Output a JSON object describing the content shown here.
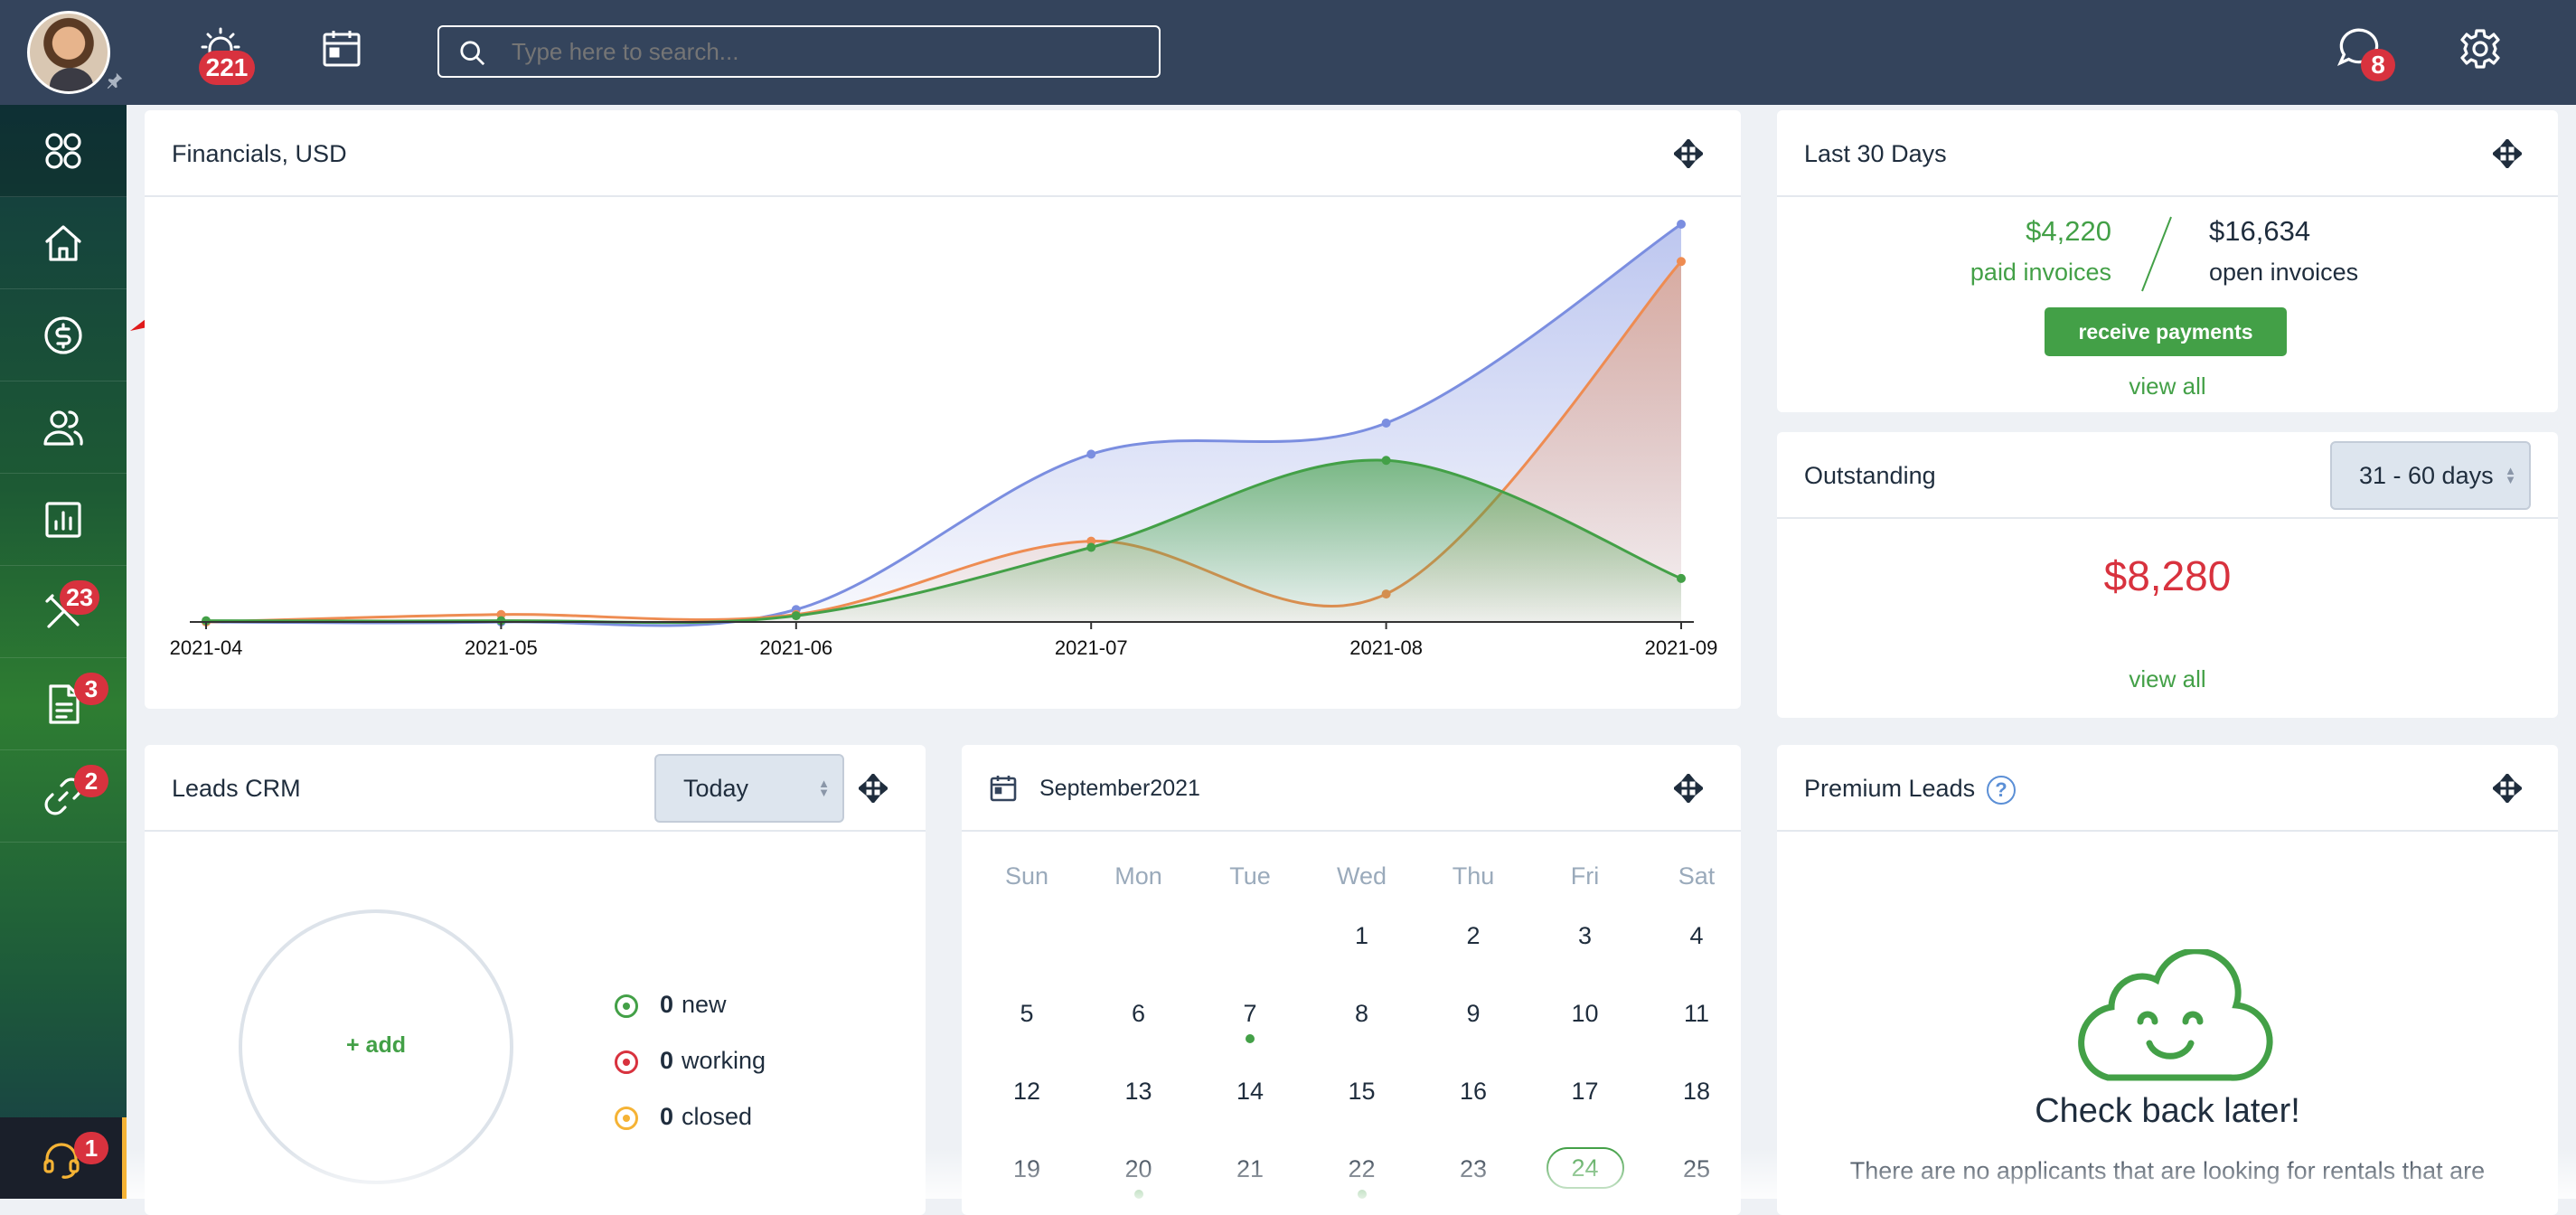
{
  "topbar": {
    "alarm_badge": "221",
    "search_placeholder": "Type here to search...",
    "chat_badge": "8"
  },
  "sidebar": {
    "tools_badge": "23",
    "docs_badge": "3",
    "links_badge": "2",
    "support_badge": "1"
  },
  "financials": {
    "title": "Financials, USD",
    "chart_data": {
      "type": "area",
      "title": "Financials, USD",
      "x": [
        "2021-04",
        "2021-05",
        "2021-06",
        "2021-07",
        "2021-08",
        "2021-09"
      ],
      "series": [
        {
          "color": "#7b8ee0",
          "values": [
            0,
            0,
            2,
            27,
            32,
            64
          ]
        },
        {
          "color": "#ee8c52",
          "values": [
            0,
            1.2,
            1.2,
            13,
            4.5,
            58
          ]
        },
        {
          "color": "#43a047",
          "values": [
            0.2,
            0.2,
            1,
            12,
            26,
            7
          ]
        }
      ],
      "ylim": [
        0,
        64
      ],
      "grid": false
    }
  },
  "last30": {
    "title": "Last 30 Days",
    "paid_amount": "$4,220",
    "paid_label": "paid invoices",
    "open_amount": "$16,634",
    "open_label": "open invoices",
    "receive_button": "receive payments",
    "view_all": "view all"
  },
  "outstanding": {
    "title": "Outstanding",
    "range": "31 - 60 days",
    "amount": "$8,280",
    "view_all": "view all"
  },
  "leads": {
    "title": "Leads CRM",
    "period": "Today",
    "add": "+ add",
    "stats": [
      {
        "count": "0",
        "label": "new",
        "color": "#43a047"
      },
      {
        "count": "0",
        "label": "working",
        "color": "#d8323e"
      },
      {
        "count": "0",
        "label": "closed",
        "color": "#f5b335"
      }
    ]
  },
  "calendar": {
    "title": "September2021",
    "weekdays": [
      "Sun",
      "Mon",
      "Tue",
      "Wed",
      "Thu",
      "Fri",
      "Sat"
    ],
    "weeks": [
      [
        "",
        "",
        "",
        "1",
        "2",
        "3",
        "4"
      ],
      [
        "5",
        "6",
        "7",
        "8",
        "9",
        "10",
        "11"
      ],
      [
        "12",
        "13",
        "14",
        "15",
        "16",
        "17",
        "18"
      ],
      [
        "19",
        "20",
        "21",
        "22",
        "23",
        "24",
        "25"
      ]
    ],
    "today": "24",
    "event_days": [
      "7",
      "20",
      "22"
    ]
  },
  "premium": {
    "title": "Premium Leads",
    "heading": "Check back later!",
    "message": "There are no applicants that are looking for rentals that are"
  },
  "colors": {
    "topbar": "#34445c",
    "accent_green": "#43a047",
    "alert_red": "#d8323e"
  }
}
